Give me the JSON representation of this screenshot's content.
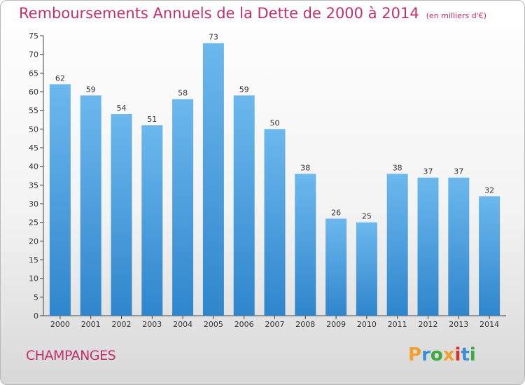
{
  "header": {
    "title": "Remboursements Annuels de la Dette de 2000 à 2014",
    "unit": "(en milliers d'€)"
  },
  "footer": {
    "commune": "CHAMPANGES",
    "logo": "Proxiti",
    "logo_colors": [
      "#f0a030",
      "#3a8fd8",
      "#3aa83a",
      "#f0a030",
      "#d8302a",
      "#3a8fd8",
      "#3aa83a"
    ]
  },
  "chart_data": {
    "type": "bar",
    "title": "Remboursements Annuels de la Dette de 2000 à 2014",
    "categories": [
      "2000",
      "2001",
      "2002",
      "2003",
      "2004",
      "2005",
      "2006",
      "2007",
      "2008",
      "2009",
      "2010",
      "2011",
      "2012",
      "2013",
      "2014"
    ],
    "values": [
      62,
      59,
      54,
      51,
      58,
      73,
      59,
      50,
      38,
      26,
      25,
      38,
      37,
      37,
      32
    ],
    "ylim": [
      0,
      75
    ],
    "yticks": [
      0,
      5,
      10,
      15,
      20,
      25,
      30,
      35,
      40,
      45,
      50,
      55,
      60,
      65,
      70,
      75
    ],
    "grid": false,
    "bar_color_light": "#6cb8ee",
    "bar_color_dark": "#2f86cc"
  }
}
